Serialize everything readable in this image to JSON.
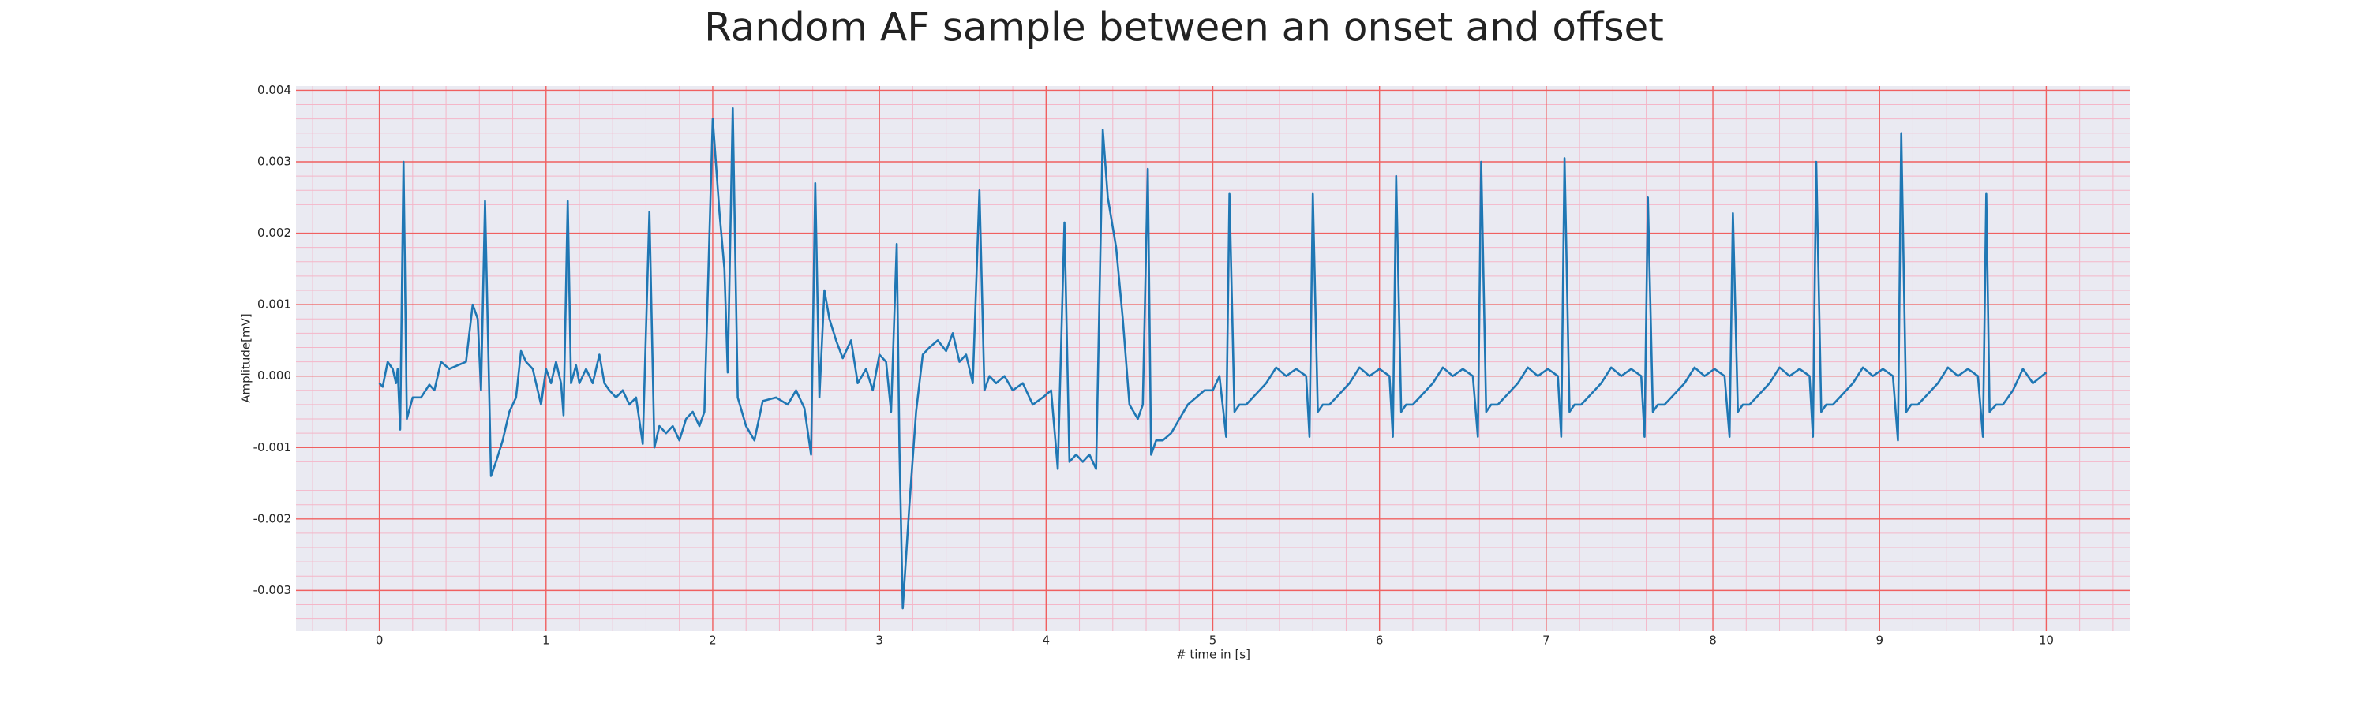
{
  "chart_data": {
    "type": "line",
    "title": "Random AF sample between an onset and offset",
    "xlabel": "# time in [s]",
    "ylabel": "Amplitude[mV]",
    "color": "#1f77b4",
    "grid": true,
    "xlim": [
      -0.5,
      10.5
    ],
    "ylim": [
      -0.00357,
      0.00406
    ],
    "xticks": [
      0,
      1,
      2,
      3,
      4,
      5,
      6,
      7,
      8,
      9,
      10
    ],
    "yticks": [
      -0.003,
      -0.002,
      -0.001,
      {
        "value": 0,
        "label": "0.000"
      },
      0.001,
      0.002,
      0.003,
      0.004
    ],
    "x": [
      0,
      0.02,
      0.05,
      0.08,
      0.1,
      0.11,
      0.125,
      0.145,
      0.165,
      0.2,
      0.25,
      0.3,
      0.33,
      0.37,
      0.42,
      0.47,
      0.52,
      0.56,
      0.59,
      0.61,
      0.634,
      0.67,
      0.7,
      0.74,
      0.78,
      0.82,
      0.85,
      0.88,
      0.92,
      0.97,
      1.0,
      1.03,
      1.06,
      1.09,
      1.105,
      1.13,
      1.15,
      1.18,
      1.2,
      1.24,
      1.28,
      1.32,
      1.35,
      1.38,
      1.42,
      1.46,
      1.5,
      1.54,
      1.58,
      1.62,
      1.65,
      1.68,
      1.72,
      1.76,
      1.8,
      1.84,
      1.88,
      1.92,
      1.95,
      2.0,
      2.04,
      2.07,
      2.09,
      2.12,
      2.15,
      2.2,
      2.25,
      2.3,
      2.38,
      2.45,
      2.5,
      2.55,
      2.59,
      2.615,
      2.64,
      2.67,
      2.7,
      2.74,
      2.78,
      2.83,
      2.87,
      2.92,
      2.96,
      3.0,
      3.04,
      3.07,
      3.104,
      3.12,
      3.14,
      3.18,
      3.22,
      3.26,
      3.3,
      3.35,
      3.4,
      3.44,
      3.48,
      3.52,
      3.56,
      3.6,
      3.63,
      3.66,
      3.7,
      3.75,
      3.8,
      3.86,
      3.92,
      3.98,
      4.03,
      4.07,
      4.11,
      4.14,
      4.18,
      4.22,
      4.26,
      4.3,
      4.34,
      4.37,
      4.42,
      4.46,
      4.5,
      4.55,
      4.58,
      4.61,
      4.63,
      4.66,
      4.7,
      4.75,
      4.8,
      4.85,
      4.9,
      4.95,
      5.0,
      5.04,
      5.08,
      5.1,
      5.13,
      5.16,
      5.2,
      5.26,
      5.32,
      5.38,
      5.44,
      5.5,
      5.56,
      5.58,
      5.6,
      5.63,
      5.66,
      5.7,
      5.76,
      5.82,
      5.88,
      5.94,
      6.0,
      6.06,
      6.08,
      6.1,
      6.13,
      6.16,
      6.2,
      6.26,
      6.32,
      6.38,
      6.44,
      6.5,
      6.56,
      6.59,
      6.61,
      6.64,
      6.67,
      6.71,
      6.77,
      6.83,
      6.89,
      6.95,
      7.01,
      7.07,
      7.09,
      7.11,
      7.14,
      7.17,
      7.21,
      7.27,
      7.33,
      7.39,
      7.45,
      7.51,
      7.57,
      7.59,
      7.61,
      7.64,
      7.67,
      7.71,
      7.77,
      7.83,
      7.89,
      7.95,
      8.01,
      8.07,
      8.1,
      8.12,
      8.15,
      8.18,
      8.22,
      8.28,
      8.34,
      8.4,
      8.46,
      8.52,
      8.58,
      8.6,
      8.62,
      8.65,
      8.68,
      8.72,
      8.78,
      8.84,
      8.9,
      8.96,
      9.02,
      9.08,
      9.11,
      9.13,
      9.16,
      9.19,
      9.23,
      9.29,
      9.35,
      9.41,
      9.47,
      9.53,
      9.59,
      9.62,
      9.64,
      9.66,
      9.7,
      9.74,
      9.8,
      9.86,
      9.92,
      10.0
    ],
    "values": [
      -0.0001,
      -0.00015,
      0.0002,
      0.0001,
      -0.0001,
      0.0001,
      -0.00075,
      0.003,
      -0.0006,
      -0.0003,
      -0.0003,
      -0.00012,
      -0.0002,
      0.0002,
      0.0001,
      0.00015,
      0.0002,
      0.001,
      0.0008,
      -0.0002,
      0.00245,
      -0.0014,
      -0.0012,
      -0.0009,
      -0.0005,
      -0.0003,
      0.00035,
      0.0002,
      0.0001,
      -0.0004,
      0.0001,
      -0.0001,
      0.0002,
      -0.0001,
      -0.00055,
      0.00245,
      -0.0001,
      0.00015,
      -0.0001,
      0.0001,
      -0.0001,
      0.0003,
      -0.0001,
      -0.0002,
      -0.0003,
      -0.0002,
      -0.0004,
      -0.0003,
      -0.00095,
      0.0023,
      -0.001,
      -0.0007,
      -0.0008,
      -0.0007,
      -0.0009,
      -0.0006,
      -0.0005,
      -0.0007,
      -0.0005,
      0.0036,
      0.0023,
      0.0015,
      5e-05,
      0.00375,
      -0.0003,
      -0.0007,
      -0.0009,
      -0.00035,
      -0.0003,
      -0.0004,
      -0.0002,
      -0.00045,
      -0.0011,
      0.0027,
      -0.0003,
      0.0012,
      0.0008,
      0.0005,
      0.00025,
      0.0005,
      -0.0001,
      0.0001,
      -0.0002,
      0.0003,
      0.0002,
      -0.0005,
      0.00185,
      -0.001,
      -0.00325,
      -0.0018,
      -0.0005,
      0.0003,
      0.0004,
      0.0005,
      0.00035,
      0.0006,
      0.0002,
      0.0003,
      -0.0001,
      0.0026,
      -0.0002,
      0,
      -0.0001,
      0,
      -0.0002,
      -0.0001,
      -0.0004,
      -0.0003,
      -0.0002,
      -0.0013,
      0.00215,
      -0.0012,
      -0.0011,
      -0.0012,
      -0.0011,
      -0.0013,
      0.00345,
      0.0025,
      0.0018,
      0.0008,
      -0.0004,
      -0.0006,
      -0.0004,
      0.0029,
      -0.0011,
      -0.0009,
      -0.0009,
      -0.0008,
      -0.0006,
      -0.0004,
      -0.0003,
      -0.0002,
      -0.0002,
      0,
      -0.00085,
      0.00255,
      -0.0005,
      -0.0004,
      -0.0004,
      -0.00025,
      -0.0001,
      0.00012,
      0,
      0.0001,
      0,
      -0.00085,
      0.00255,
      -0.0005,
      -0.0004,
      -0.0004,
      -0.00025,
      -0.0001,
      0.00012,
      0,
      0.0001,
      0,
      -0.00085,
      0.0028,
      -0.0005,
      -0.0004,
      -0.0004,
      -0.00025,
      -0.0001,
      0.00012,
      0,
      0.0001,
      0,
      -0.00085,
      0.003,
      -0.0005,
      -0.0004,
      -0.0004,
      -0.00025,
      -0.0001,
      0.00012,
      0,
      0.0001,
      0,
      -0.00085,
      0.00305,
      -0.0005,
      -0.0004,
      -0.0004,
      -0.00025,
      -0.0001,
      0.00012,
      0,
      0.0001,
      0,
      -0.00085,
      0.0025,
      -0.0005,
      -0.0004,
      -0.0004,
      -0.00025,
      -0.0001,
      0.00012,
      0,
      0.0001,
      0,
      -0.00085,
      0.00228,
      -0.0005,
      -0.0004,
      -0.0004,
      -0.00025,
      -0.0001,
      0.00012,
      0,
      0.0001,
      0,
      -0.00085,
      0.003,
      -0.0005,
      -0.0004,
      -0.0004,
      -0.00025,
      -0.0001,
      0.00012,
      0,
      0.0001,
      0,
      -0.0009,
      0.0034,
      -0.0005,
      -0.0004,
      -0.0004,
      -0.00025,
      -0.0001,
      0.00012,
      0,
      0.0001,
      0,
      -0.00085,
      0.00255,
      -0.0005,
      -0.0004,
      -0.0004,
      -0.0002,
      0.0001,
      -0.0001,
      5e-05
    ]
  }
}
